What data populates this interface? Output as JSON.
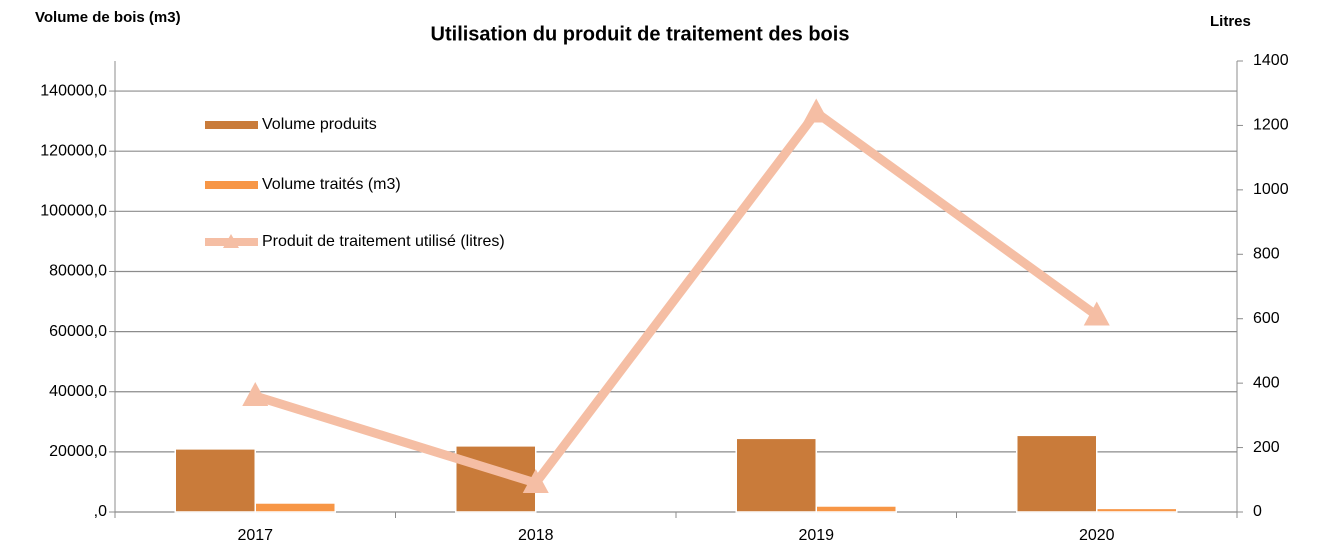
{
  "chart_data": {
    "type": "bar_line",
    "title": "Utilisation du produit de traitement des bois",
    "y_label": "Volume de bois (m3)",
    "y2_label": "Litres",
    "categories": [
      "2017",
      "2018",
      "2019",
      "2020"
    ],
    "series": [
      {
        "name": "Volume produits",
        "color": "#c97b3a",
        "type": "bar",
        "values": [
          21000,
          22000,
          24500,
          25500
        ]
      },
      {
        "name": "Volume traités (m3)",
        "color": "#f79646",
        "type": "bar",
        "values": [
          3000,
          0,
          2000,
          1200
        ]
      },
      {
        "name": "Produit de traitement utilisé (litres)",
        "color": "#f5bea4",
        "type": "line",
        "axis": "y2",
        "values": [
          360,
          90,
          1240,
          610
        ]
      }
    ],
    "ylim": [
      0,
      150000
    ],
    "yticks": [
      {
        "value": 0,
        "label": ",0"
      },
      {
        "value": 20000,
        "label": "20000,0"
      },
      {
        "value": 40000,
        "label": "40000,0"
      },
      {
        "value": 60000,
        "label": "60000,0"
      },
      {
        "value": 80000,
        "label": "80000,0"
      },
      {
        "value": 100000,
        "label": "100000,0"
      },
      {
        "value": 120000,
        "label": "120000,0"
      },
      {
        "value": 140000,
        "label": "140000,0"
      }
    ],
    "y2lim": [
      0,
      1400
    ],
    "y2ticks": [
      0,
      200,
      400,
      600,
      800,
      1000,
      1200,
      1400
    ],
    "grid": true,
    "legend": "upper-left"
  }
}
